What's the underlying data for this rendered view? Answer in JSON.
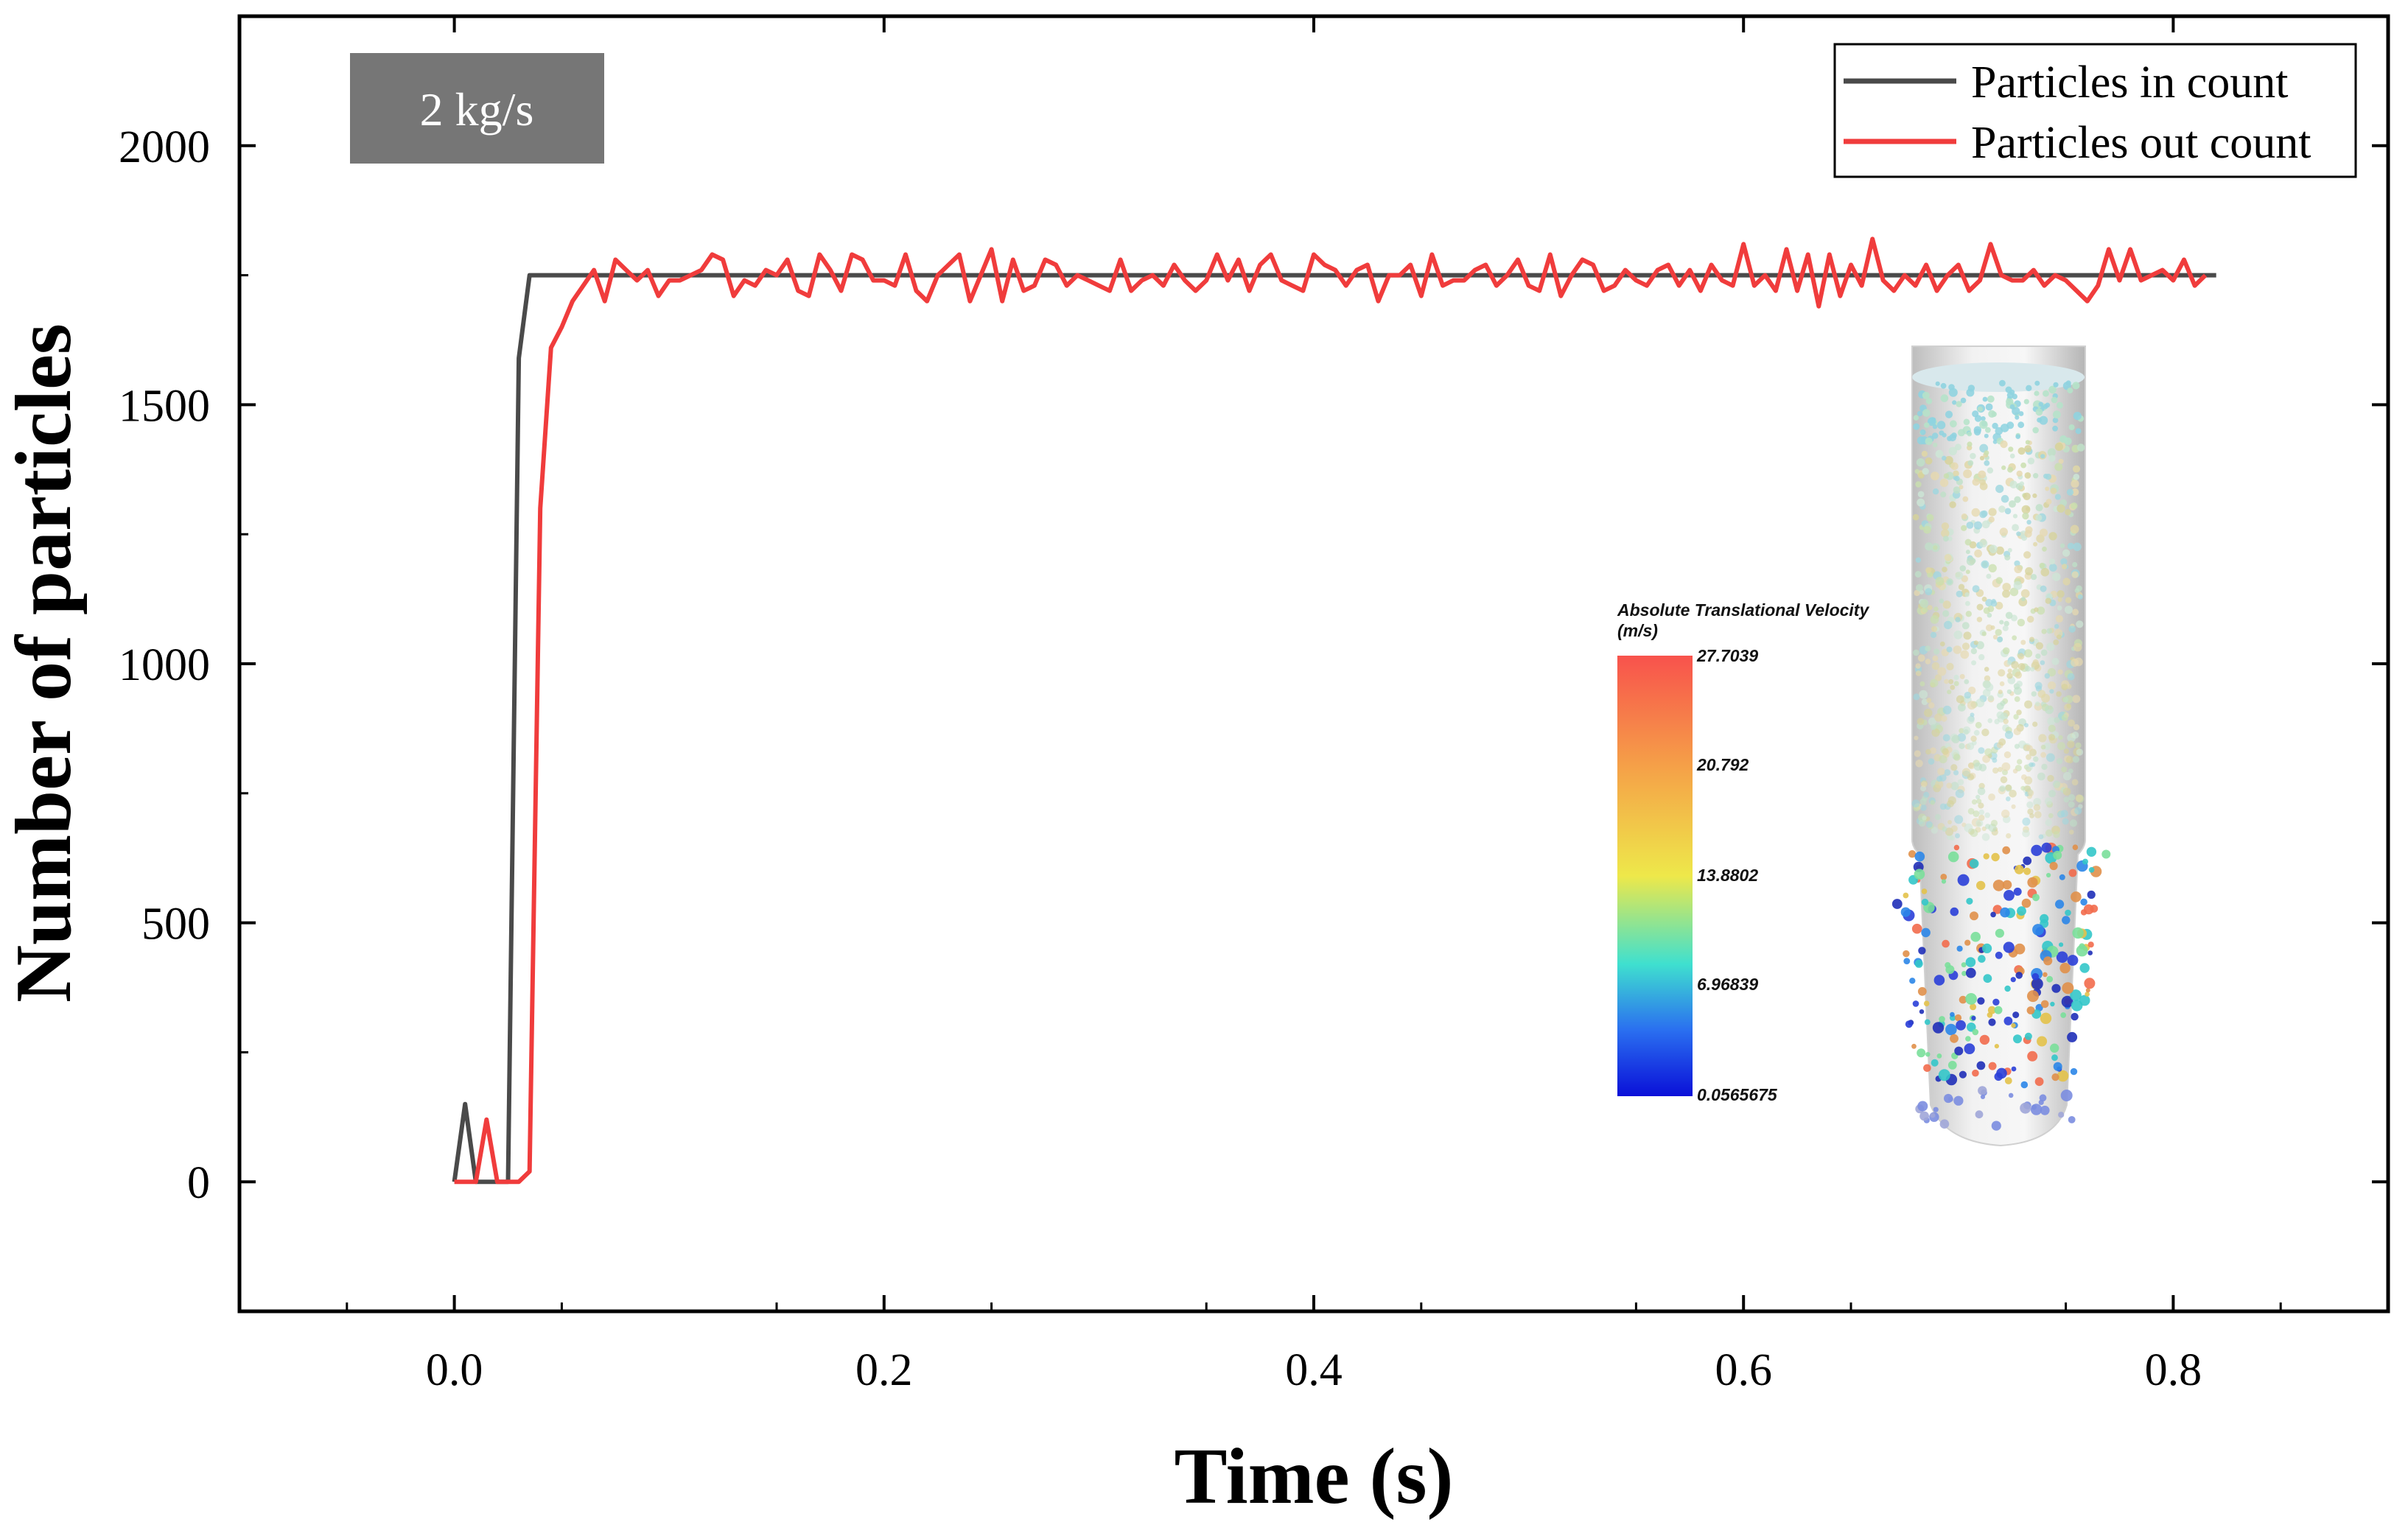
{
  "chart_data": {
    "type": "line",
    "title": "",
    "xlabel": "Time (s)",
    "ylabel": "Number of particles",
    "xlim": [
      -0.1,
      0.9
    ],
    "ylim": [
      -250,
      2250
    ],
    "xticks": [
      0.0,
      0.2,
      0.4,
      0.6,
      0.8
    ],
    "xtick_labels": [
      "0.0",
      "0.2",
      "0.4",
      "0.6",
      "0.8"
    ],
    "yticks": [
      0,
      500,
      1000,
      1500,
      2000
    ],
    "ytick_labels": [
      "0",
      "500",
      "1000",
      "1500",
      "2000"
    ],
    "grid": false,
    "legend_position": "top-right",
    "annotation_box": "2 kg/s",
    "series": [
      {
        "name": "Particles in count",
        "color": "#4a4a4a",
        "points": [
          [
            0.0,
            0
          ],
          [
            0.005,
            150
          ],
          [
            0.01,
            0
          ],
          [
            0.02,
            0
          ],
          [
            0.025,
            0
          ],
          [
            0.03,
            1590
          ],
          [
            0.035,
            1750
          ],
          [
            0.82,
            1750
          ]
        ]
      },
      {
        "name": "Particles out count",
        "color": "#f03c3c",
        "points": [
          [
            0.0,
            0
          ],
          [
            0.005,
            0
          ],
          [
            0.01,
            0
          ],
          [
            0.015,
            120
          ],
          [
            0.02,
            0
          ],
          [
            0.025,
            0
          ],
          [
            0.03,
            0
          ],
          [
            0.035,
            20
          ],
          [
            0.04,
            1300
          ],
          [
            0.045,
            1610
          ],
          [
            0.05,
            1650
          ],
          [
            0.055,
            1700
          ],
          [
            0.06,
            1730
          ],
          [
            0.065,
            1760
          ],
          [
            0.07,
            1700
          ],
          [
            0.075,
            1780
          ],
          [
            0.08,
            1760
          ],
          [
            0.085,
            1740
          ],
          [
            0.09,
            1760
          ],
          [
            0.095,
            1710
          ],
          [
            0.1,
            1740
          ],
          [
            0.105,
            1740
          ],
          [
            0.11,
            1750
          ],
          [
            0.115,
            1760
          ],
          [
            0.12,
            1790
          ],
          [
            0.125,
            1780
          ],
          [
            0.13,
            1710
          ],
          [
            0.135,
            1740
          ],
          [
            0.14,
            1730
          ],
          [
            0.145,
            1760
          ],
          [
            0.15,
            1750
          ],
          [
            0.155,
            1780
          ],
          [
            0.16,
            1720
          ],
          [
            0.165,
            1710
          ],
          [
            0.17,
            1790
          ],
          [
            0.175,
            1760
          ],
          [
            0.18,
            1720
          ],
          [
            0.185,
            1790
          ],
          [
            0.19,
            1780
          ],
          [
            0.195,
            1740
          ],
          [
            0.2,
            1740
          ],
          [
            0.205,
            1730
          ],
          [
            0.21,
            1790
          ],
          [
            0.215,
            1720
          ],
          [
            0.22,
            1700
          ],
          [
            0.225,
            1750
          ],
          [
            0.23,
            1770
          ],
          [
            0.235,
            1790
          ],
          [
            0.24,
            1700
          ],
          [
            0.245,
            1750
          ],
          [
            0.25,
            1800
          ],
          [
            0.255,
            1700
          ],
          [
            0.26,
            1780
          ],
          [
            0.265,
            1720
          ],
          [
            0.27,
            1730
          ],
          [
            0.275,
            1780
          ],
          [
            0.28,
            1770
          ],
          [
            0.285,
            1730
          ],
          [
            0.29,
            1750
          ],
          [
            0.295,
            1740
          ],
          [
            0.3,
            1730
          ],
          [
            0.305,
            1720
          ],
          [
            0.31,
            1780
          ],
          [
            0.315,
            1720
          ],
          [
            0.32,
            1740
          ],
          [
            0.325,
            1750
          ],
          [
            0.33,
            1730
          ],
          [
            0.335,
            1770
          ],
          [
            0.34,
            1740
          ],
          [
            0.345,
            1720
          ],
          [
            0.35,
            1740
          ],
          [
            0.355,
            1790
          ],
          [
            0.36,
            1740
          ],
          [
            0.365,
            1780
          ],
          [
            0.37,
            1720
          ],
          [
            0.375,
            1770
          ],
          [
            0.38,
            1790
          ],
          [
            0.385,
            1740
          ],
          [
            0.39,
            1730
          ],
          [
            0.395,
            1720
          ],
          [
            0.4,
            1790
          ],
          [
            0.405,
            1770
          ],
          [
            0.41,
            1760
          ],
          [
            0.415,
            1730
          ],
          [
            0.42,
            1760
          ],
          [
            0.425,
            1770
          ],
          [
            0.43,
            1700
          ],
          [
            0.435,
            1750
          ],
          [
            0.44,
            1750
          ],
          [
            0.445,
            1770
          ],
          [
            0.45,
            1710
          ],
          [
            0.455,
            1790
          ],
          [
            0.46,
            1730
          ],
          [
            0.465,
            1740
          ],
          [
            0.47,
            1740
          ],
          [
            0.475,
            1760
          ],
          [
            0.48,
            1770
          ],
          [
            0.485,
            1730
          ],
          [
            0.49,
            1750
          ],
          [
            0.495,
            1780
          ],
          [
            0.5,
            1730
          ],
          [
            0.505,
            1720
          ],
          [
            0.51,
            1790
          ],
          [
            0.515,
            1710
          ],
          [
            0.52,
            1750
          ],
          [
            0.525,
            1780
          ],
          [
            0.53,
            1770
          ],
          [
            0.535,
            1720
          ],
          [
            0.54,
            1730
          ],
          [
            0.545,
            1760
          ],
          [
            0.55,
            1740
          ],
          [
            0.555,
            1730
          ],
          [
            0.56,
            1760
          ],
          [
            0.565,
            1770
          ],
          [
            0.57,
            1730
          ],
          [
            0.575,
            1760
          ],
          [
            0.58,
            1720
          ],
          [
            0.585,
            1770
          ],
          [
            0.59,
            1740
          ],
          [
            0.595,
            1730
          ],
          [
            0.6,
            1810
          ],
          [
            0.605,
            1730
          ],
          [
            0.61,
            1750
          ],
          [
            0.615,
            1720
          ],
          [
            0.62,
            1800
          ],
          [
            0.625,
            1720
          ],
          [
            0.63,
            1790
          ],
          [
            0.635,
            1690
          ],
          [
            0.64,
            1790
          ],
          [
            0.645,
            1710
          ],
          [
            0.65,
            1770
          ],
          [
            0.655,
            1730
          ],
          [
            0.66,
            1820
          ],
          [
            0.665,
            1740
          ],
          [
            0.67,
            1720
          ],
          [
            0.675,
            1750
          ],
          [
            0.68,
            1730
          ],
          [
            0.685,
            1770
          ],
          [
            0.69,
            1720
          ],
          [
            0.695,
            1750
          ],
          [
            0.7,
            1770
          ],
          [
            0.705,
            1720
          ],
          [
            0.71,
            1740
          ],
          [
            0.715,
            1810
          ],
          [
            0.72,
            1750
          ],
          [
            0.725,
            1740
          ],
          [
            0.73,
            1740
          ],
          [
            0.735,
            1760
          ],
          [
            0.74,
            1730
          ],
          [
            0.745,
            1750
          ],
          [
            0.75,
            1740
          ],
          [
            0.755,
            1720
          ],
          [
            0.76,
            1700
          ],
          [
            0.765,
            1730
          ],
          [
            0.77,
            1800
          ],
          [
            0.775,
            1740
          ],
          [
            0.78,
            1800
          ],
          [
            0.785,
            1740
          ],
          [
            0.79,
            1750
          ],
          [
            0.795,
            1760
          ],
          [
            0.8,
            1740
          ],
          [
            0.805,
            1780
          ],
          [
            0.81,
            1730
          ],
          [
            0.815,
            1750
          ]
        ]
      }
    ]
  },
  "inset": {
    "colorbar_title_line1": "Absolute Translational Velocity",
    "colorbar_title_line2": "(m/s)",
    "colorbar_labels": [
      "27.7039",
      "20.792",
      "13.8802",
      "6.96839",
      "0.0565675"
    ],
    "colorbar_colors": [
      "#f8524c",
      "#f5a048",
      "#eee84a",
      "#3fe0cf",
      "#2a6ff0",
      "#0a10d8"
    ]
  }
}
